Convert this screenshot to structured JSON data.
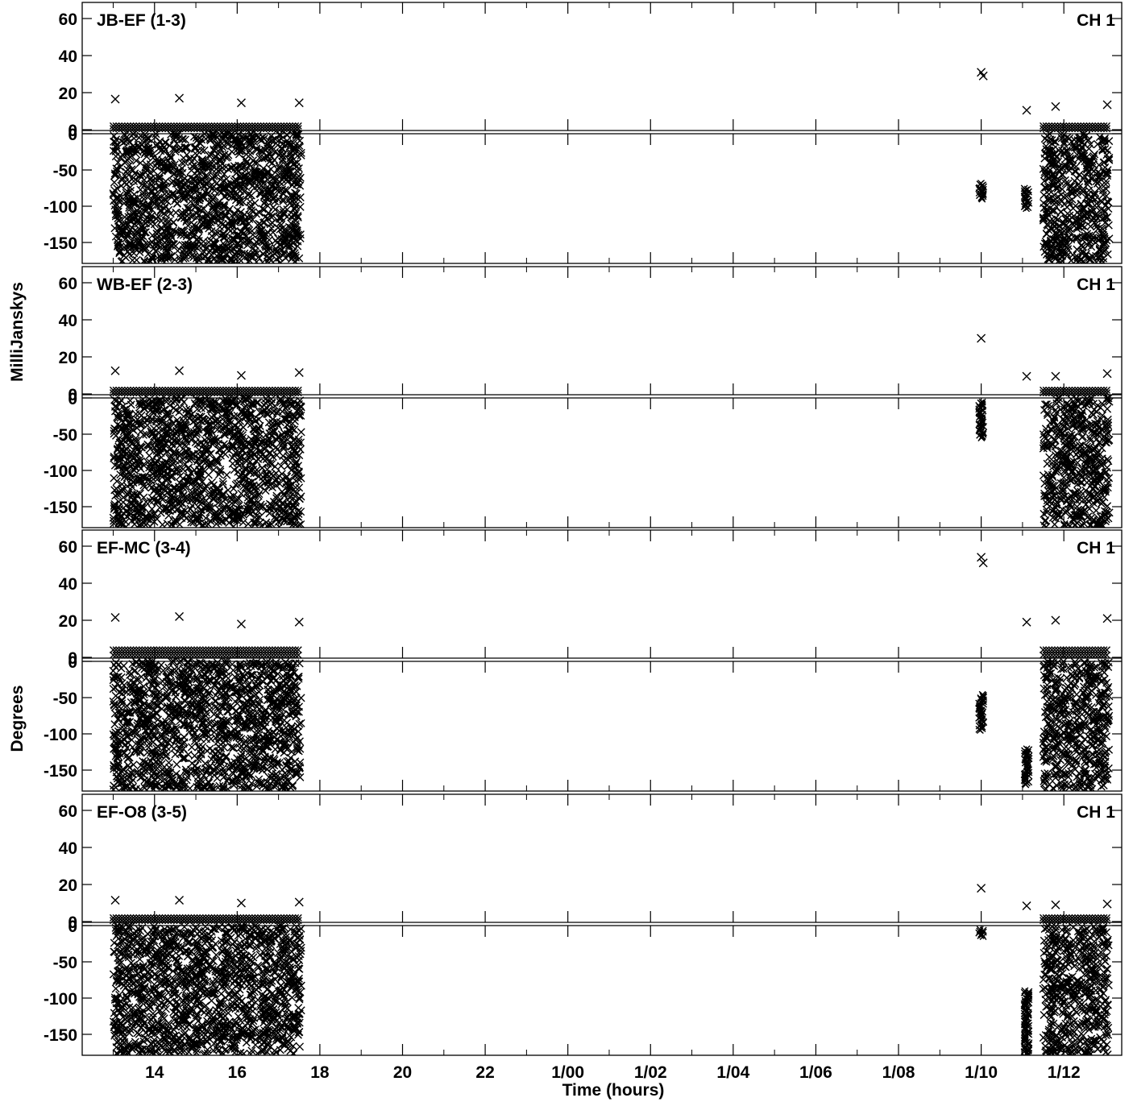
{
  "chart_data": {
    "type": "scatter",
    "description_free": true,
    "xlabel": "Time (hours)",
    "ylabels": [
      "MilliJanskys",
      "Degrees"
    ],
    "x_ticks": [
      "14",
      "16",
      "18",
      "20",
      "22",
      "1/00",
      "1/02",
      "1/04",
      "1/06",
      "1/08",
      "1/10",
      "1/12"
    ],
    "x_tick_hours": [
      14,
      16,
      18,
      20,
      22,
      24,
      26,
      28,
      30,
      32,
      34,
      36
    ],
    "xlim_hours": [
      12.25,
      37.4
    ],
    "upper_ylim": [
      0,
      65
    ],
    "upper_yticks": [
      0,
      20,
      40,
      60
    ],
    "lower_ylim": [
      -180,
      0
    ],
    "lower_yticks": [
      0,
      -50,
      -100,
      -150
    ],
    "marker": "x",
    "color": "#000000",
    "scan_blocks_hours": [
      [
        13.0,
        17.55
      ],
      [
        35.5,
        37.1
      ]
    ],
    "panels": [
      {
        "label": "JB-EF (1-3)",
        "channel": "CH 1",
        "amplitude_baseline_mJy": 2,
        "amplitude_outliers": [
          {
            "x": 13.05,
            "y": 16.5
          },
          {
            "x": 14.6,
            "y": 17
          },
          {
            "x": 16.1,
            "y": 14.5
          },
          {
            "x": 17.5,
            "y": 14.5
          },
          {
            "x": 34.0,
            "y": 31
          },
          {
            "x": 34.05,
            "y": 29
          },
          {
            "x": 35.1,
            "y": 10.5
          },
          {
            "x": 35.8,
            "y": 12.5
          },
          {
            "x": 37.05,
            "y": 13.5
          }
        ],
        "phase_clusters": [
          {
            "x": 34.0,
            "y_range": [
              -90,
              -68
            ]
          },
          {
            "x": 35.1,
            "y_range": [
              -103,
              -75
            ]
          }
        ]
      },
      {
        "label": "WB-EF (2-3)",
        "channel": "CH 1",
        "amplitude_baseline_mJy": 2,
        "amplitude_outliers": [
          {
            "x": 13.05,
            "y": 12.5
          },
          {
            "x": 14.6,
            "y": 12.5
          },
          {
            "x": 16.1,
            "y": 10
          },
          {
            "x": 17.5,
            "y": 11.5
          },
          {
            "x": 34.0,
            "y": 30
          },
          {
            "x": 35.1,
            "y": 9.5
          },
          {
            "x": 35.8,
            "y": 9.5
          },
          {
            "x": 37.05,
            "y": 11
          }
        ],
        "phase_clusters": [
          {
            "x": 34.0,
            "y_range": [
              -55,
              -5
            ]
          }
        ]
      },
      {
        "label": "EF-MC (3-4)",
        "channel": "CH 1",
        "amplitude_baseline_mJy": 4,
        "amplitude_outliers": [
          {
            "x": 13.05,
            "y": 21.5
          },
          {
            "x": 14.6,
            "y": 22
          },
          {
            "x": 16.1,
            "y": 18
          },
          {
            "x": 17.5,
            "y": 19
          },
          {
            "x": 34.0,
            "y": 54
          },
          {
            "x": 34.05,
            "y": 51
          },
          {
            "x": 35.1,
            "y": 19
          },
          {
            "x": 35.8,
            "y": 20
          },
          {
            "x": 37.05,
            "y": 21
          }
        ],
        "phase_clusters": [
          {
            "x": 34.0,
            "y_range": [
              -95,
              -45
            ]
          },
          {
            "x": 35.1,
            "y_range": [
              -170,
              -120
            ]
          }
        ]
      },
      {
        "label": "EF-O8 (3-5)",
        "channel": "CH 1",
        "amplitude_baseline_mJy": 2,
        "amplitude_outliers": [
          {
            "x": 13.05,
            "y": 11.5
          },
          {
            "x": 14.6,
            "y": 11.5
          },
          {
            "x": 16.1,
            "y": 10
          },
          {
            "x": 17.5,
            "y": 10.5
          },
          {
            "x": 34.0,
            "y": 18
          },
          {
            "x": 35.1,
            "y": 8.5
          },
          {
            "x": 35.8,
            "y": 9
          },
          {
            "x": 37.05,
            "y": 9.5
          }
        ],
        "phase_clusters": [
          {
            "x": 34.0,
            "y_range": [
              -15,
              -5
            ]
          },
          {
            "x": 35.1,
            "y_range": [
              -180,
              -90
            ]
          }
        ]
      }
    ]
  }
}
